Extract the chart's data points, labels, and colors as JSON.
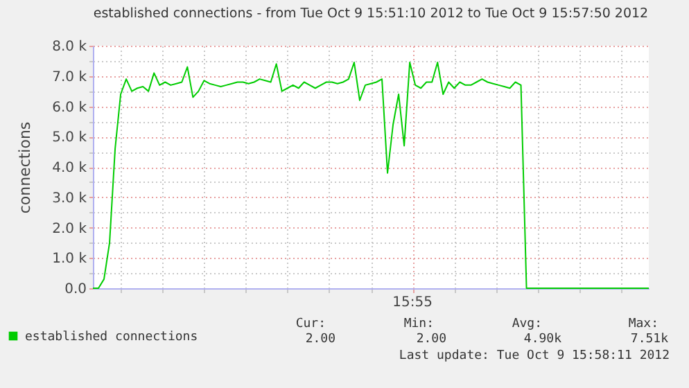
{
  "chart_data": {
    "type": "line",
    "title": "established connections - from Tue Oct  9 15:51:10 2012 to Tue Oct  9 15:57:50 2012",
    "ylabel": "connections",
    "categories": [
      null,
      null,
      null,
      null,
      null,
      null,
      null,
      null,
      null,
      null,
      null,
      null,
      null,
      null,
      null,
      null,
      null,
      null,
      null,
      null,
      null,
      null,
      null,
      null,
      null,
      null,
      null,
      null,
      null,
      null,
      null,
      null,
      null,
      null,
      null,
      null,
      null,
      null,
      null,
      null,
      null,
      null,
      null,
      null,
      null,
      null,
      null,
      null,
      null,
      null,
      null,
      null,
      null,
      null,
      null,
      null,
      null,
      null,
      null,
      null,
      null,
      null,
      null,
      null,
      null,
      null,
      null,
      null,
      null,
      null,
      null,
      null,
      null,
      null,
      null,
      null,
      null,
      null,
      null,
      null,
      null,
      null,
      null,
      null,
      null,
      null,
      null,
      null,
      null,
      null,
      null,
      null,
      null,
      null,
      null,
      null,
      null,
      null,
      null,
      null,
      null
    ],
    "series": [
      {
        "name": "established connections",
        "color": "#00cc00",
        "values": [
          0,
          0,
          300,
          1500,
          4600,
          6400,
          6900,
          6500,
          6600,
          6650,
          6500,
          7100,
          6700,
          6800,
          6700,
          6750,
          6800,
          7300,
          6300,
          6500,
          6850,
          6750,
          6700,
          6650,
          6700,
          6750,
          6800,
          6800,
          6750,
          6800,
          6900,
          6850,
          6800,
          7400,
          6500,
          6600,
          6700,
          6600,
          6800,
          6700,
          6600,
          6700,
          6800,
          6800,
          6750,
          6800,
          6900,
          7450,
          6200,
          6700,
          6750,
          6800,
          6900,
          3800,
          5400,
          6400,
          4700,
          7450,
          6700,
          6600,
          6800,
          6800,
          7450,
          6400,
          6800,
          6600,
          6800,
          6700,
          6700,
          6800,
          6900,
          6800,
          6750,
          6700,
          6650,
          6600,
          6800,
          6700,
          0,
          0,
          0,
          0,
          0,
          0,
          0,
          0,
          0,
          0,
          0,
          0,
          0,
          0,
          0,
          0,
          0,
          0,
          0,
          0,
          0,
          0,
          0
        ]
      }
    ],
    "ylim": [
      0,
      8000
    ],
    "yticks": [
      {
        "value": 0,
        "label": "0.0"
      },
      {
        "value": 500,
        "label": null
      },
      {
        "value": 1000,
        "label": "1.0 k"
      },
      {
        "value": 1500,
        "label": null
      },
      {
        "value": 2000,
        "label": "2.0 k"
      },
      {
        "value": 2500,
        "label": null
      },
      {
        "value": 3000,
        "label": "3.0 k"
      },
      {
        "value": 3500,
        "label": null
      },
      {
        "value": 4000,
        "label": "4.0 k"
      },
      {
        "value": 4500,
        "label": null
      },
      {
        "value": 5000,
        "label": "5.0 k"
      },
      {
        "value": 5500,
        "label": null
      },
      {
        "value": 6000,
        "label": "6.0 k"
      },
      {
        "value": 6500,
        "label": null
      },
      {
        "value": 7000,
        "label": "7.0 k"
      },
      {
        "value": 7500,
        "label": null
      },
      {
        "value": 8000,
        "label": "8.0 k"
      }
    ],
    "grid": true,
    "legend": "bottom left",
    "marker": "none",
    "line_style": "solid",
    "annotations": [
      "15:55",
      "Cur:",
      "Min:",
      "Avg:",
      "Max:",
      "2.00",
      "2.00",
      "4.90k",
      "7.51k",
      "Last update: Tue Oct  9 15:58:11 2012"
    ]
  }
}
